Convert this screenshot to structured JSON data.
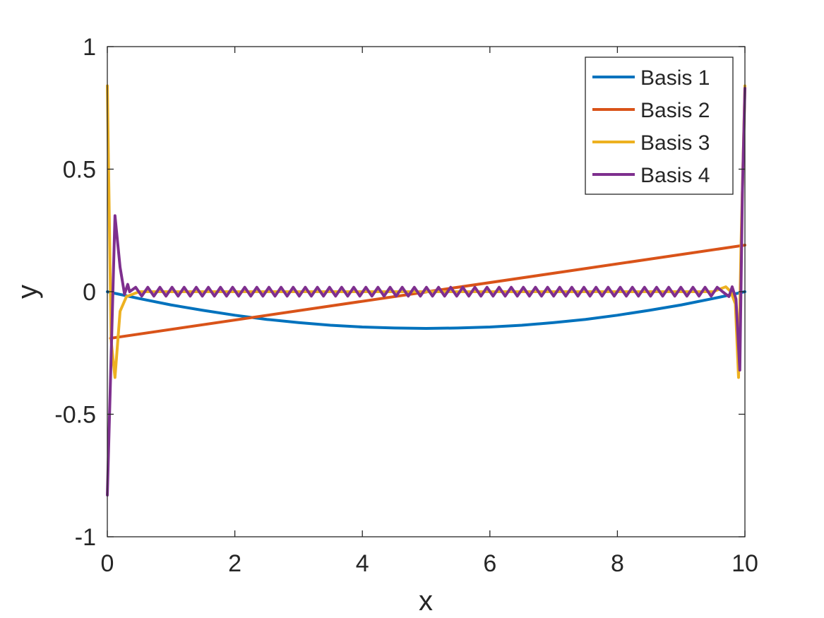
{
  "chart_data": {
    "type": "line",
    "title": "",
    "xlabel": "x",
    "ylabel": "y",
    "xlim": [
      0,
      10
    ],
    "ylim": [
      -1,
      1
    ],
    "xticks": [
      0,
      2,
      4,
      6,
      8,
      10
    ],
    "xtick_labels": [
      "0",
      "2",
      "4",
      "6",
      "8",
      "10"
    ],
    "yticks": [
      -1,
      -0.5,
      0,
      0.5,
      1
    ],
    "ytick_labels": [
      "-1",
      "-0.5",
      "0",
      "0.5",
      "1"
    ],
    "grid": false,
    "legend_position": "top-right",
    "series": [
      {
        "name": "Basis 1",
        "color": "#0072BD",
        "x": [
          0,
          0.5,
          1,
          1.5,
          2,
          2.5,
          3,
          3.5,
          4,
          4.5,
          5,
          5.5,
          6,
          6.5,
          7,
          7.5,
          8,
          8.5,
          9,
          9.5,
          10
        ],
        "y": [
          0,
          -0.028,
          -0.054,
          -0.076,
          -0.096,
          -0.113,
          -0.126,
          -0.137,
          -0.144,
          -0.148,
          -0.15,
          -0.148,
          -0.144,
          -0.137,
          -0.126,
          -0.113,
          -0.096,
          -0.076,
          -0.054,
          -0.028,
          0
        ]
      },
      {
        "name": "Basis 2",
        "color": "#D95319",
        "x": [
          0.05,
          10
        ],
        "y": [
          -0.19,
          0.19
        ]
      },
      {
        "name": "Basis 3",
        "color": "#EDB120",
        "x": [
          0,
          0.06,
          0.12,
          0.2,
          0.3,
          0.5,
          1,
          2,
          3,
          4,
          5,
          6,
          7,
          8,
          9,
          9.5,
          9.7,
          9.78,
          9.85,
          9.9,
          9.94,
          10
        ],
        "y": [
          0.84,
          -0.2,
          -0.35,
          -0.08,
          -0.02,
          0.0,
          0.0,
          0.0,
          0.0,
          0.0,
          0.0,
          0.0,
          0.0,
          0.0,
          0.0,
          0.0,
          0.02,
          0.0,
          -0.05,
          -0.35,
          0.2,
          0.84
        ]
      },
      {
        "name": "Basis 4",
        "color": "#7E2F8E",
        "x": [
          0,
          0.12,
          0.2,
          0.27,
          0.32,
          0.35,
          9.65,
          9.75,
          9.8,
          9.86,
          9.92,
          9.96,
          10
        ],
        "y": [
          -0.83,
          0.31,
          0.1,
          -0.01,
          0.03,
          0.0,
          0.0,
          -0.02,
          0.02,
          -0.03,
          -0.32,
          0.4,
          0.83
        ],
        "oscillation": {
          "x_from": 0.35,
          "x_to": 9.65,
          "amplitude": 0.018,
          "period": 0.19
        }
      }
    ]
  }
}
